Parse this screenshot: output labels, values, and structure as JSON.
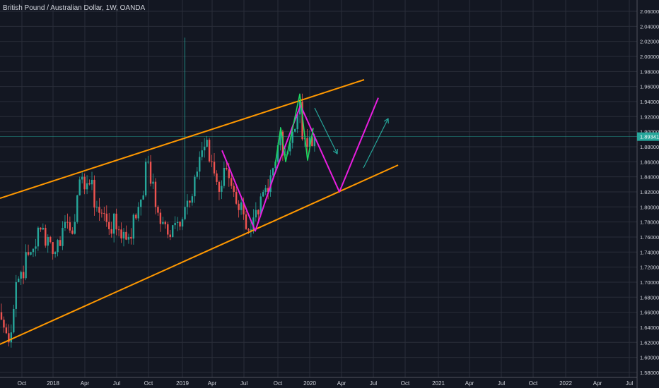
{
  "header": {
    "title": "British Pound / Australian Dollar, 1W, OANDA"
  },
  "colors": {
    "bg": "#131722",
    "grid": "#2a2e39",
    "up": "#26a69a",
    "down": "#ef5350",
    "channel": "#ff9800",
    "zigzag": "#e91ee0",
    "pattern": "#1ed760",
    "arrow": "#26a69a",
    "text": "#d1d4dc"
  },
  "chart_data": {
    "type": "candlestick",
    "title": "British Pound / Australian Dollar, 1W, OANDA",
    "ylim": [
      1.57,
      2.065
    ],
    "y_ticks": [
      "2.06000",
      "2.04000",
      "2.02000",
      "2.00000",
      "1.98000",
      "1.96000",
      "1.94000",
      "1.92000",
      "1.90000",
      "1.88000",
      "1.86000",
      "1.84000",
      "1.82000",
      "1.80000",
      "1.78000",
      "1.76000",
      "1.74000",
      "1.72000",
      "1.70000",
      "1.68000",
      "1.66000",
      "1.64000",
      "1.62000",
      "1.60000",
      "1.58000"
    ],
    "x_ticks": [
      "Oct",
      "2018",
      "Apr",
      "Jul",
      "Oct",
      "2019",
      "Apr",
      "Jul",
      "Oct",
      "2020",
      "Apr",
      "Jul",
      "Oct",
      "2021",
      "Apr",
      "Jul",
      "Oct",
      "2022",
      "Apr",
      "Jul"
    ],
    "last_price": "1.89341",
    "weekly_close_anchors": [
      [
        0,
        1.65
      ],
      [
        3,
        1.62
      ],
      [
        6,
        1.7
      ],
      [
        12,
        1.74
      ],
      [
        16,
        1.77
      ],
      [
        19,
        1.76
      ],
      [
        22,
        1.74
      ],
      [
        26,
        1.78
      ],
      [
        30,
        1.78
      ],
      [
        33,
        1.84
      ],
      [
        36,
        1.83
      ],
      [
        39,
        1.8
      ],
      [
        43,
        1.78
      ],
      [
        48,
        1.77
      ],
      [
        52,
        1.76
      ],
      [
        56,
        1.8
      ],
      [
        60,
        1.86
      ],
      [
        63,
        1.8
      ],
      [
        66,
        1.78
      ],
      [
        69,
        1.76
      ],
      [
        72,
        1.78
      ],
      [
        75,
        1.8
      ],
      [
        79,
        1.84
      ],
      [
        83,
        1.88
      ],
      [
        86,
        1.86
      ],
      [
        89,
        1.82
      ],
      [
        92,
        1.85
      ],
      [
        95,
        1.82
      ],
      [
        99,
        1.79
      ],
      [
        102,
        1.77
      ],
      [
        105,
        1.79
      ],
      [
        109,
        1.82
      ],
      [
        112,
        1.86
      ],
      [
        114,
        1.9
      ],
      [
        116,
        1.87
      ],
      [
        119,
        1.9
      ],
      [
        122,
        1.94
      ],
      [
        123,
        1.89
      ],
      [
        125,
        1.88
      ],
      [
        128,
        1.8934
      ]
    ],
    "spike": {
      "week": 75,
      "high": 2.025
    },
    "drawings": {
      "channel_upper": [
        [
          "2017-07",
          1.81
        ],
        [
          "2020-07",
          1.97
        ]
      ],
      "channel_lower": [
        [
          "2017-07",
          1.615
        ],
        [
          "2020-09",
          1.855
        ]
      ],
      "zigzag": [
        1.875,
        1.768,
        1.84,
        1.935,
        1.82,
        1.945
      ],
      "pattern": [
        1.855,
        1.905,
        1.86,
        1.95,
        1.862,
        1.905
      ]
    }
  }
}
